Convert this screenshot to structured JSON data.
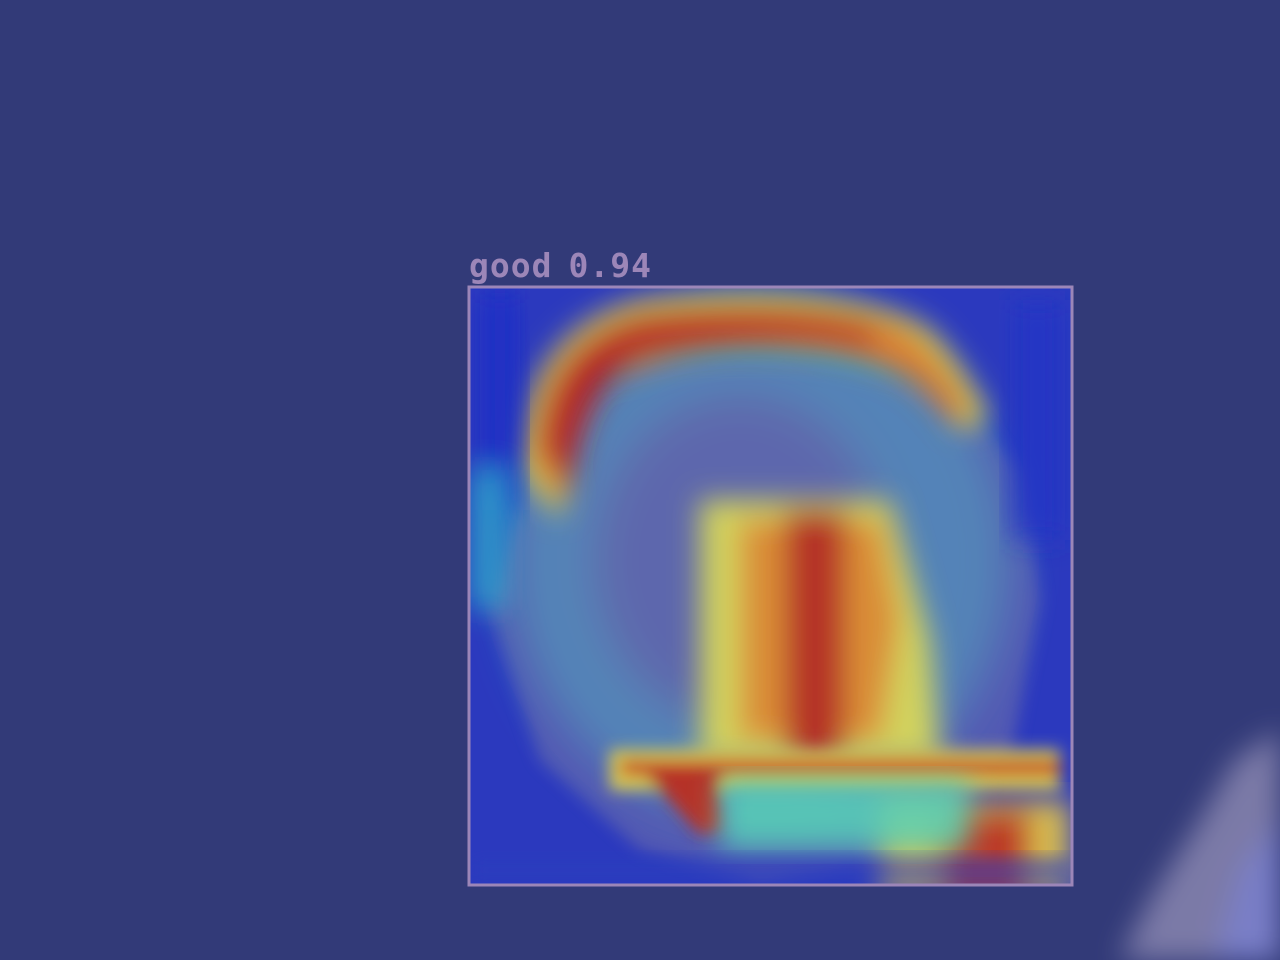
{
  "detection": {
    "class_label": "good",
    "confidence": "0.94",
    "box_color": "#9c86b8"
  },
  "overlay": {
    "type": "grad-cam heatmap",
    "colormap": "jet"
  },
  "background_color": "#323a78"
}
